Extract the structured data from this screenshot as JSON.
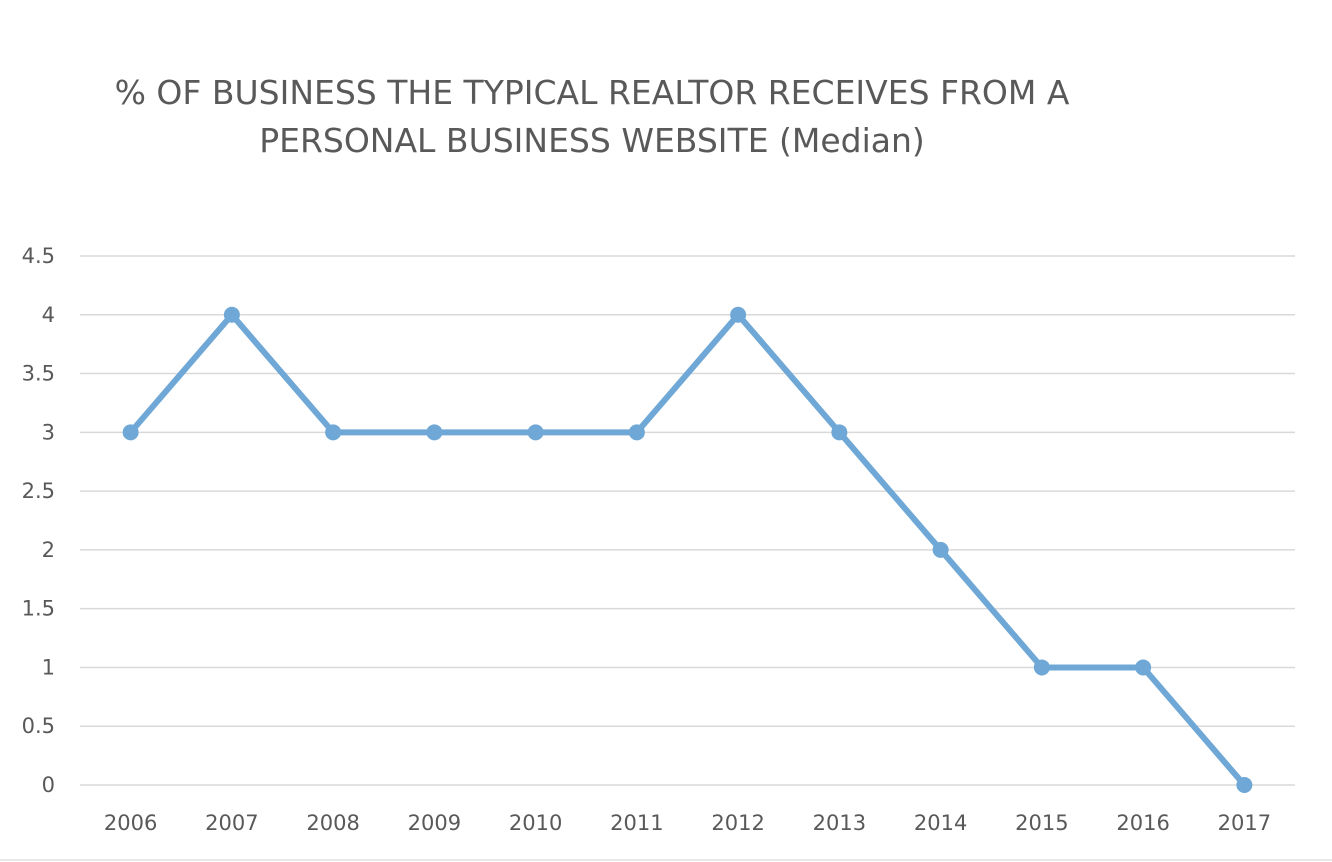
{
  "chart_data": {
    "type": "line",
    "title": {
      "lines": [
        "% OF BUSINESS THE TYPICAL REALTOR RECEIVES FROM A",
        "PERSONAL BUSINESS WEBSITE (Median)"
      ]
    },
    "categories": [
      "2006",
      "2007",
      "2008",
      "2009",
      "2010",
      "2011",
      "2012",
      "2013",
      "2014",
      "2015",
      "2016",
      "2017"
    ],
    "series": [
      {
        "values": [
          3,
          4,
          3,
          3,
          3,
          3,
          4,
          3,
          2,
          1,
          1,
          0
        ],
        "color": "#6fa8d6"
      }
    ],
    "xlabel": "",
    "ylabel": "",
    "ylim": [
      0,
      4.5
    ],
    "yticks": [
      "0",
      "0.5",
      "1",
      "1.5",
      "2",
      "2.5",
      "3",
      "3.5",
      "4",
      "4.5"
    ],
    "grid": true,
    "legend": "none"
  }
}
